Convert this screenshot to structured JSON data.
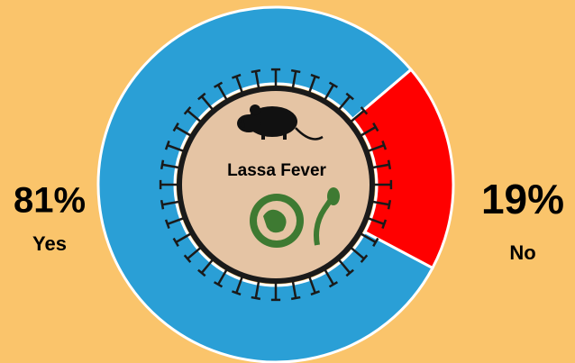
{
  "chart_data": {
    "type": "donut",
    "categories": [
      "Yes",
      "No"
    ],
    "values": [
      81,
      19
    ],
    "value_labels": [
      "81%",
      "19%"
    ],
    "colors": [
      "#2a9fd6",
      "#ff0000"
    ],
    "center_label": "Lassa Fever"
  }
}
